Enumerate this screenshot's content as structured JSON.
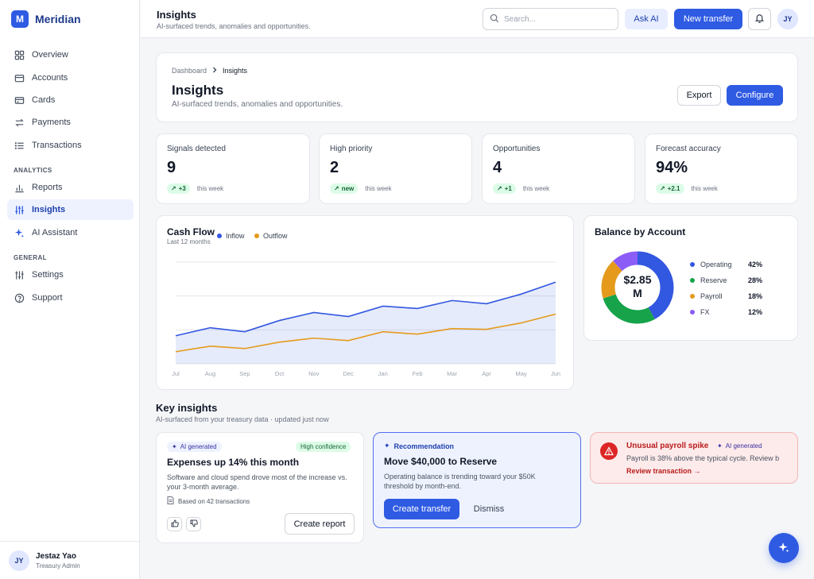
{
  "brand": {
    "logo_letter": "M",
    "name": "Meridian"
  },
  "sidebar": {
    "items_main": [
      {
        "label": "Overview",
        "icon": "grid-icon"
      },
      {
        "label": "Accounts",
        "icon": "wallet-icon"
      },
      {
        "label": "Cards",
        "icon": "card-icon"
      },
      {
        "label": "Payments",
        "icon": "transfer-icon"
      },
      {
        "label": "Transactions",
        "icon": "list-icon"
      }
    ],
    "section_analytics": "ANALYTICS",
    "items_analytics": [
      {
        "label": "Reports",
        "icon": "bar-chart-icon"
      },
      {
        "label": "Insights",
        "icon": "sliders-icon",
        "active": true
      },
      {
        "label": "AI Assistant",
        "icon": "sparkle-icon"
      }
    ],
    "section_general": "GENERAL",
    "items_general": [
      {
        "label": "Settings",
        "icon": "settings-icon"
      },
      {
        "label": "Support",
        "icon": "help-icon"
      }
    ],
    "user": {
      "initials": "JY",
      "name": "Jestaz Yao",
      "role": "Treasury Admin"
    }
  },
  "topbar": {
    "title": "Insights",
    "subtitle": "AI-surfaced trends, anomalies and opportunities.",
    "search_placeholder": "Search...",
    "ask_ai": "Ask AI",
    "new_transfer": "New transfer",
    "avatar": "JY"
  },
  "header": {
    "breadcrumb_root": "Dashboard",
    "breadcrumb_current": "Insights",
    "title": "Insights",
    "subtitle": "AI-surfaced trends, anomalies and opportunities.",
    "export": "Export",
    "configure": "Configure"
  },
  "stats": [
    {
      "label": "Signals detected",
      "value": "9",
      "delta": "+3",
      "period": "this week"
    },
    {
      "label": "High priority",
      "value": "2",
      "delta": "new",
      "period": "this week"
    },
    {
      "label": "Opportunities",
      "value": "4",
      "delta": "+1",
      "period": "this week"
    },
    {
      "label": "Forecast accuracy",
      "value": "94%",
      "delta": "+2.1",
      "period": "this week"
    }
  ],
  "cashflow": {
    "title": "Cash Flow",
    "subtitle": "Last 12 months",
    "colors": {
      "inflow": "#3257e0",
      "outflow": "#e59a1c"
    }
  },
  "chart_data": {
    "type": "area",
    "title": "Cash Flow",
    "subtitle": "Last 12 months",
    "categories": [
      "Jul",
      "Aug",
      "Sep",
      "Oct",
      "Nov",
      "Dec",
      "Jan",
      "Feb",
      "Mar",
      "Apr",
      "May",
      "Jun"
    ],
    "series": [
      {
        "name": "Inflow",
        "values": [
          28,
          38,
          33,
          47,
          57,
          52,
          65,
          62,
          72,
          68,
          80,
          95
        ]
      },
      {
        "name": "Outflow",
        "values": [
          8,
          15,
          12,
          20,
          25,
          22,
          33,
          30,
          37,
          36,
          44,
          55
        ]
      }
    ],
    "ylim": [
      -7,
      120
    ],
    "grid": true,
    "legend": "top-left"
  },
  "balance": {
    "title": "Balance by Account",
    "total": "$2.85M",
    "accounts": [
      {
        "name": "Operating",
        "pct": "42%",
        "value": 42,
        "color": "#3257e0"
      },
      {
        "name": "Reserve",
        "pct": "28%",
        "value": 28,
        "color": "#16a34a"
      },
      {
        "name": "Payroll",
        "pct": "18%",
        "value": 18,
        "color": "#e59a1c"
      },
      {
        "name": "FX",
        "pct": "12%",
        "value": 12,
        "color": "#8b5cf6"
      }
    ]
  },
  "key_insights": {
    "title": "Key insights",
    "subtitle": "AI-surfaced from your treasury data · updated just now",
    "card1": {
      "tag_ai": "AI generated",
      "tag_conf": "High confidence",
      "title": "Expenses up 14% this month",
      "body": "Software and cloud spend drove most of the increase vs. your 3-month average.",
      "meta": "Based on 42 transactions",
      "action": "Create report"
    },
    "card2": {
      "tag": "Recommendation",
      "title": "Move $40,000 to Reserve",
      "body": "Operating balance is trending toward your $50K threshold by month-end.",
      "primary": "Create transfer",
      "secondary": "Dismiss"
    },
    "card3": {
      "title": "Unusual payroll spike",
      "tag_ai": "AI generated",
      "body": "Payroll is 38% above the typical cycle. Review b",
      "link": "Review transaction →"
    }
  }
}
